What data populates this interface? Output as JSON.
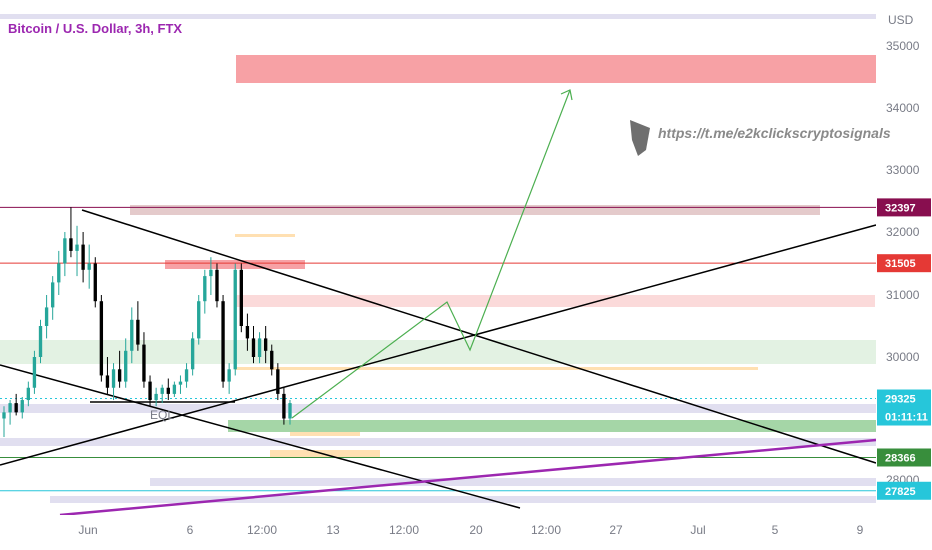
{
  "header": {
    "title": "Bitcoin / U.S. Dollar, 3h, FTX",
    "title_color": "#9c27b0"
  },
  "watermark": {
    "text": "https://t.me/e2kclickscryptosignals",
    "icon": "telegram-plane-icon"
  },
  "colors": {
    "up": "#26a69a",
    "down": "#000000",
    "grid_band": "#e1dff0",
    "demand": "#a5d6a7",
    "supply": "#f7a1a5",
    "trend": "#000000",
    "purple": "#9c27b0",
    "projection": "#4caf50"
  },
  "chart_data": {
    "type": "candlestick",
    "title": "Bitcoin / U.S. Dollar, 3h, FTX",
    "y_unit": "USD",
    "ylim": [
      27500,
      35600
    ],
    "x_tick_labels": [
      "Jun",
      "6",
      "12:00",
      "13",
      "12:00",
      "20",
      "12:00",
      "27",
      "Jul",
      "5",
      "9"
    ],
    "y_tick_labels": [
      "35000",
      "34000",
      "33000",
      "32000",
      "31000",
      "30000",
      "28000"
    ],
    "candles": [
      [
        29000,
        29200,
        28700,
        29100
      ],
      [
        29100,
        29300,
        28900,
        29250
      ],
      [
        29250,
        29400,
        29050,
        29100
      ],
      [
        29100,
        29350,
        29000,
        29300
      ],
      [
        29300,
        29600,
        29200,
        29500
      ],
      [
        29500,
        30100,
        29400,
        30000
      ],
      [
        30000,
        30600,
        29900,
        30500
      ],
      [
        30500,
        31000,
        30300,
        30800
      ],
      [
        30800,
        31300,
        30600,
        31200
      ],
      [
        31200,
        31700,
        31000,
        31500
      ],
      [
        31500,
        32000,
        31300,
        31900
      ],
      [
        31900,
        32400,
        31600,
        31700
      ],
      [
        31700,
        32100,
        31300,
        31800
      ],
      [
        31800,
        32000,
        31200,
        31400
      ],
      [
        31400,
        31800,
        31100,
        31500
      ],
      [
        31500,
        31600,
        30800,
        30900
      ],
      [
        30900,
        31000,
        29600,
        29700
      ],
      [
        29700,
        30000,
        29400,
        29500
      ],
      [
        29500,
        29900,
        29300,
        29800
      ],
      [
        29800,
        30100,
        29500,
        29600
      ],
      [
        29600,
        30300,
        29500,
        30100
      ],
      [
        30100,
        30800,
        29900,
        30600
      ],
      [
        30600,
        30900,
        30100,
        30200
      ],
      [
        30200,
        30400,
        29500,
        29600
      ],
      [
        29600,
        29700,
        29200,
        29300
      ],
      [
        29300,
        29500,
        29200,
        29400
      ],
      [
        29400,
        29550,
        29250,
        29500
      ],
      [
        29500,
        29650,
        29300,
        29400
      ],
      [
        29400,
        29600,
        29350,
        29550
      ],
      [
        29550,
        29700,
        29400,
        29600
      ],
      [
        29600,
        29900,
        29500,
        29800
      ],
      [
        29800,
        30400,
        29700,
        30300
      ],
      [
        30300,
        31000,
        30200,
        30900
      ],
      [
        30900,
        31400,
        30700,
        31300
      ],
      [
        31300,
        31600,
        31000,
        31400
      ],
      [
        31400,
        31500,
        30800,
        30900
      ],
      [
        30900,
        31000,
        29500,
        29600
      ],
      [
        29600,
        29900,
        29400,
        29800
      ],
      [
        29800,
        31500,
        29700,
        31400
      ],
      [
        31400,
        31500,
        30400,
        30500
      ],
      [
        30500,
        30700,
        30100,
        30300
      ],
      [
        30300,
        30500,
        29900,
        30000
      ],
      [
        30000,
        30400,
        29900,
        30300
      ],
      [
        30300,
        30500,
        29900,
        30100
      ],
      [
        30100,
        30200,
        29700,
        29800
      ],
      [
        29800,
        29900,
        29300,
        29400
      ],
      [
        29400,
        29500,
        28900,
        29000
      ],
      [
        29000,
        29300,
        28900,
        29250
      ]
    ],
    "price_lines": [
      {
        "price": 32397,
        "label": "32397",
        "color": "#880e4f"
      },
      {
        "price": 31505,
        "label": "31505",
        "color": "#e53935"
      },
      {
        "price": 29325,
        "label": "29325",
        "sublabel": "01:11:11",
        "color": "#26c6da"
      },
      {
        "price": 28366,
        "label": "28366",
        "color": "#388e3c"
      },
      {
        "price": 27825,
        "label": "27825",
        "color": "#26c6da"
      }
    ],
    "annotations": [
      {
        "text": "EQL",
        "price": 29350
      }
    ],
    "projection_path": [
      [
        29300,
        0
      ],
      [
        30900,
        1
      ],
      [
        30100,
        2
      ],
      [
        34500,
        3
      ]
    ]
  }
}
